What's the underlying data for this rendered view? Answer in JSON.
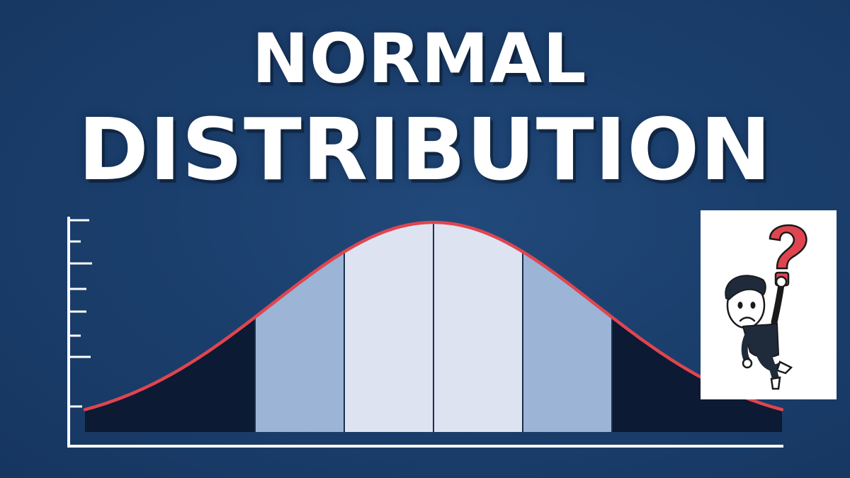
{
  "title": {
    "line1": "NORMAL",
    "line2": "DISTRIBUTION"
  },
  "colors": {
    "background": "#1b3f6d",
    "curve": "#e0454f",
    "center_band": "#dde3f1",
    "mid_band": "#9cb4d6",
    "tail": "#0c1a33",
    "axis": "#ffffff"
  },
  "diagram": {
    "type": "normal-distribution-curve",
    "bands": [
      "tail",
      "mid",
      "center",
      "center",
      "mid",
      "tail"
    ],
    "y_axis_ticks": 8
  },
  "illustration": {
    "subject": "confused-man-holding-question-mark",
    "symbol": "?"
  }
}
